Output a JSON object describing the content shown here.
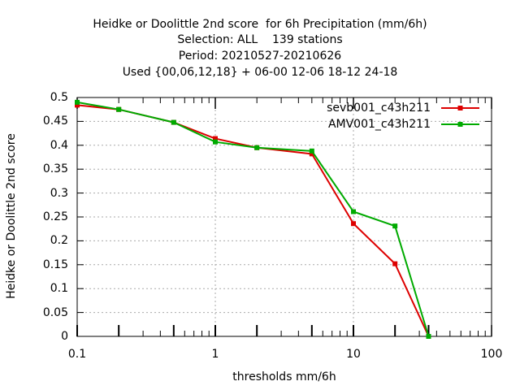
{
  "chart_data": {
    "type": "line",
    "title_lines": [
      "Heidke or Doolittle 2nd score  for 6h Precipitation (mm/6h)",
      "Selection: ALL    139 stations",
      "Period: 20210527-20210626",
      "Used {00,06,12,18} + 06-00 12-06 18-12 24-18"
    ],
    "xlabel": "thresholds mm/6h",
    "ylabel": "Heidke or Doolittle 2nd score",
    "x_scale": "log",
    "xlim": [
      0.1,
      100
    ],
    "ylim": [
      0,
      0.5
    ],
    "x_tick_labels": [
      "0.1",
      "1",
      "10",
      "100"
    ],
    "y_tick_labels": [
      "0",
      "0.05",
      "0.1",
      "0.15",
      "0.2",
      "0.25",
      "0.3",
      "0.35",
      "0.4",
      "0.45",
      "0.5"
    ],
    "grid": true,
    "legend_position": "top-right",
    "x": [
      0.1,
      0.2,
      0.5,
      1,
      2,
      5,
      10,
      20,
      35
    ],
    "series": [
      {
        "name": "sevb001_c43h211",
        "color": "#dd0000",
        "values": [
          0.484,
          0.475,
          0.448,
          0.414,
          0.395,
          0.382,
          0.236,
          0.152,
          0.0
        ]
      },
      {
        "name": "AMV001_c43h211",
        "color": "#00aa00",
        "values": [
          0.49,
          0.475,
          0.448,
          0.407,
          0.395,
          0.388,
          0.261,
          0.231,
          0.0
        ]
      }
    ]
  }
}
